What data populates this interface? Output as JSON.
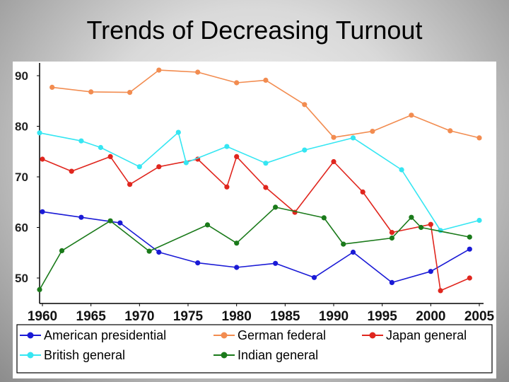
{
  "slide": {
    "title": "Trends of Decreasing Turnout"
  },
  "chart_data": {
    "type": "line",
    "title": "Trends of Decreasing Turnout",
    "xlabel": "",
    "ylabel": "",
    "xlim": [
      1960,
      2005
    ],
    "ylim": [
      45,
      92
    ],
    "x_ticks": [
      1960,
      1965,
      1970,
      1975,
      1980,
      1985,
      1990,
      1995,
      2000,
      2005
    ],
    "y_ticks": [
      50,
      60,
      70,
      80,
      90
    ],
    "grid": false,
    "legend_position": "bottom",
    "series": [
      {
        "name": "American presidential",
        "color": "#1a1ad6",
        "x": [
          1960,
          1964,
          1968,
          1972,
          1976,
          1980,
          1984,
          1988,
          1992,
          1996,
          2000,
          2004
        ],
        "values": [
          63.1,
          62.0,
          60.9,
          55.1,
          53.0,
          52.1,
          52.9,
          50.1,
          55.1,
          49.1,
          51.3,
          55.7
        ]
      },
      {
        "name": "German federal",
        "color": "#f28c50",
        "x": [
          1961,
          1965,
          1969,
          1972,
          1976,
          1980,
          1983,
          1987,
          1990,
          1994,
          1998,
          2002,
          2005
        ],
        "values": [
          87.7,
          86.8,
          86.7,
          91.1,
          90.7,
          88.6,
          89.1,
          84.3,
          77.8,
          79.0,
          82.2,
          79.1,
          77.7
        ]
      },
      {
        "name": "Japan general",
        "color": "#e0261e",
        "x": [
          1960,
          1963,
          1967,
          1969,
          1972,
          1976,
          1979,
          1980,
          1983,
          1986,
          1990,
          1993,
          1996,
          2000,
          2001,
          2004
        ],
        "values": [
          73.5,
          71.1,
          74.0,
          68.5,
          72.0,
          73.5,
          68.0,
          74.0,
          67.9,
          63.0,
          73.0,
          67.0,
          59.0,
          60.6,
          47.5,
          50.0
        ]
      },
      {
        "name": "British general",
        "color": "#35e6f2",
        "x": [
          1959,
          1964,
          1966,
          1970,
          1974,
          1974.8,
          1979,
          1983,
          1987,
          1992,
          1997,
          2001,
          2005
        ],
        "values": [
          78.7,
          77.1,
          75.8,
          72.0,
          78.8,
          72.8,
          76.0,
          72.7,
          75.3,
          77.7,
          71.4,
          59.4,
          61.4
        ]
      },
      {
        "name": "Indian general",
        "color": "#1a7a1a",
        "x": [
          1957,
          1962,
          1967,
          1971,
          1977,
          1980,
          1984,
          1989,
          1991,
          1996,
          1998,
          1999,
          2004
        ],
        "values": [
          47.7,
          55.4,
          61.3,
          55.3,
          60.5,
          56.9,
          64.0,
          61.9,
          56.7,
          57.9,
          62.0,
          60.0,
          58.1
        ]
      }
    ]
  }
}
